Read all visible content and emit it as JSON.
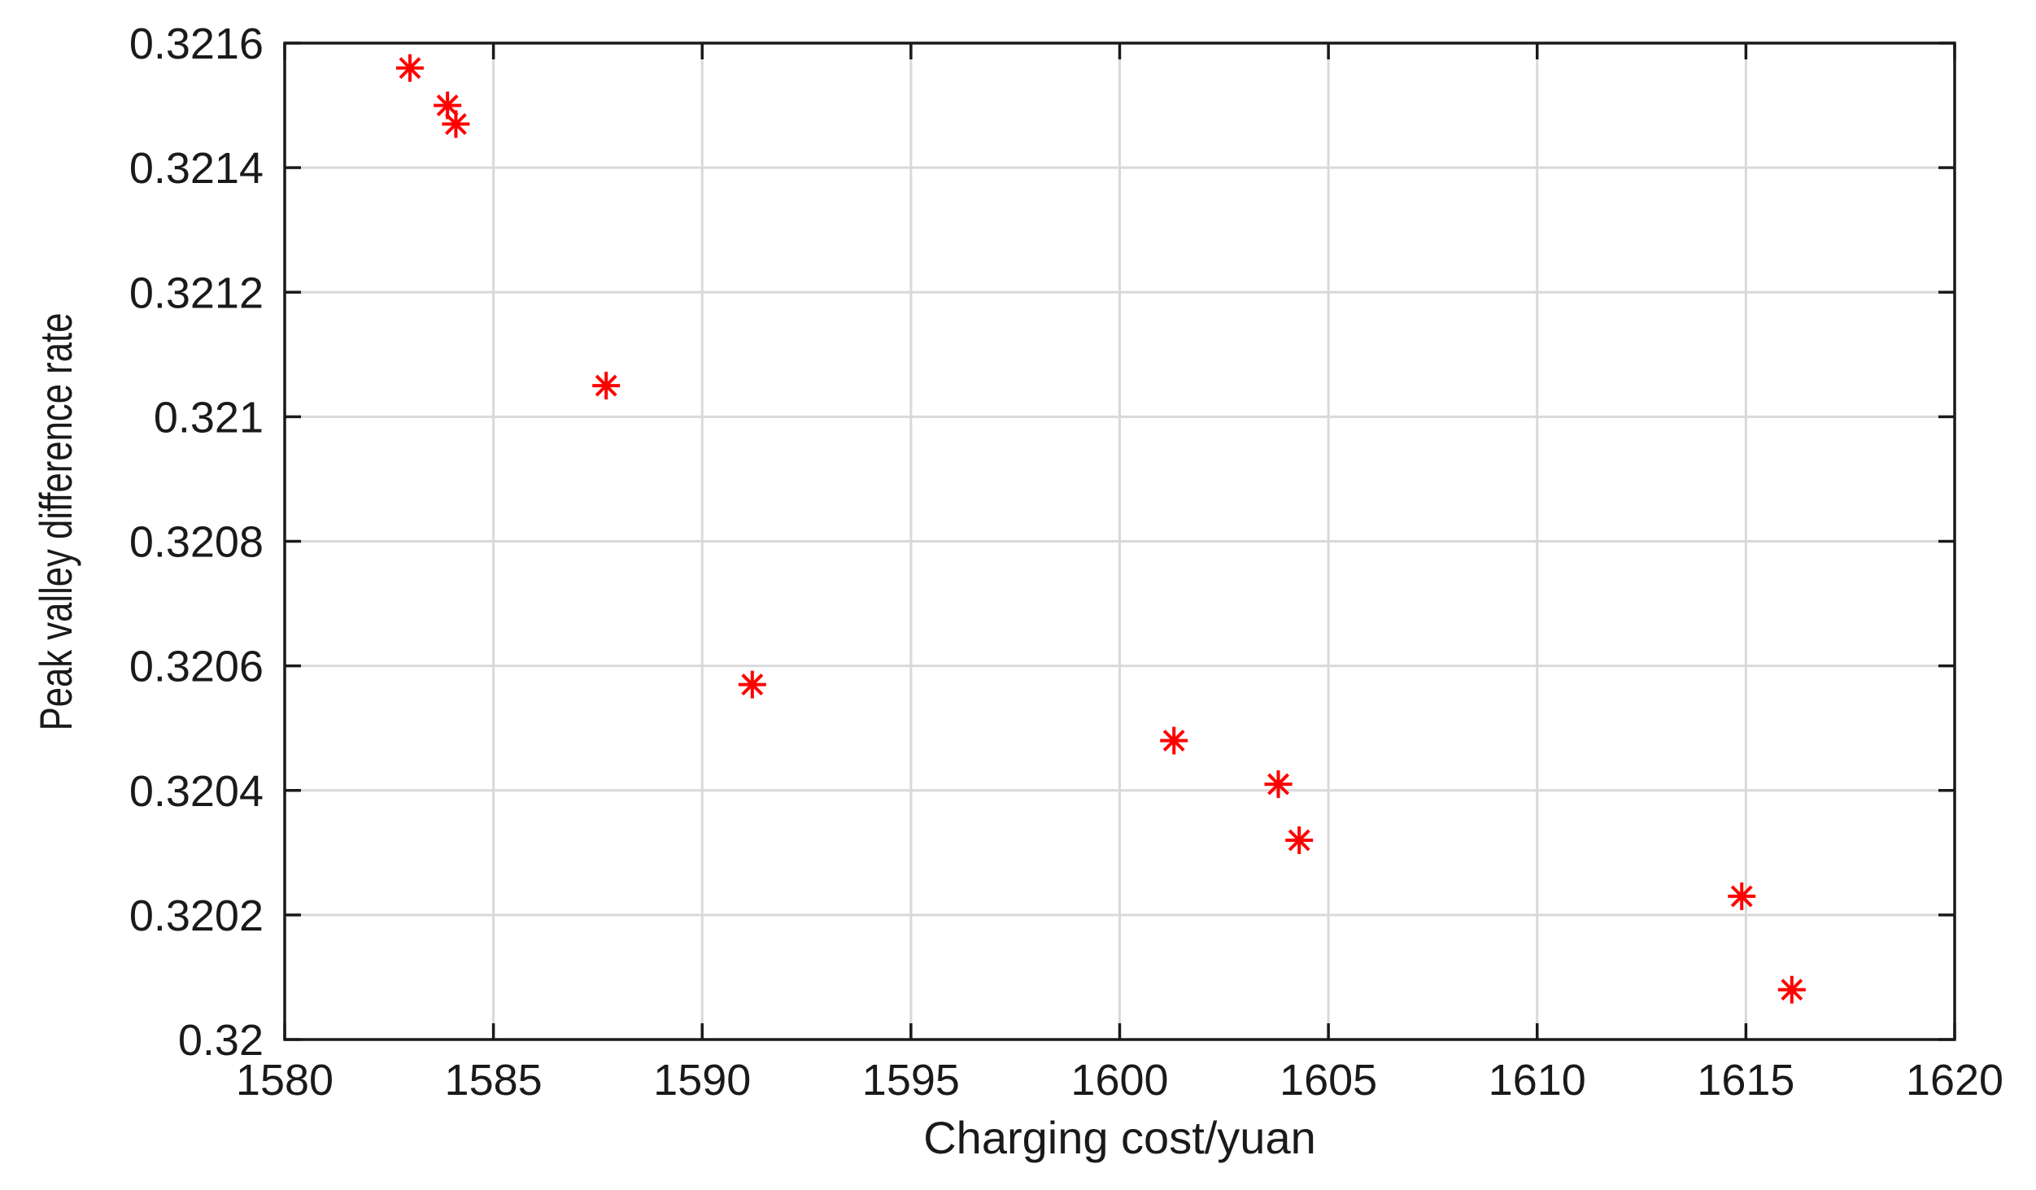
{
  "chart_data": {
    "type": "scatter",
    "title": "",
    "xlabel": "Charging cost/yuan",
    "ylabel": "Peak valley difference rate",
    "xlim": [
      1580,
      1620
    ],
    "ylim": [
      0.32,
      0.3216
    ],
    "x_ticks": [
      1580,
      1585,
      1590,
      1595,
      1600,
      1605,
      1610,
      1615,
      1620
    ],
    "x_tick_labels": [
      "1580",
      "1585",
      "1590",
      "1595",
      "1600",
      "1605",
      "1610",
      "1615",
      "1620"
    ],
    "y_ticks": [
      0.32,
      0.3202,
      0.3204,
      0.3206,
      0.3208,
      0.321,
      0.3212,
      0.3214,
      0.3216
    ],
    "y_tick_labels": [
      "0.32",
      "0.3202",
      "0.3204",
      "0.3206",
      "0.3208",
      "0.321",
      "0.3212",
      "0.3214",
      "0.3216"
    ],
    "grid": true,
    "marker": "asterisk",
    "marker_color": "#ff0000",
    "series": [
      {
        "x": [
          1583.0,
          1583.9,
          1584.1,
          1587.7,
          1591.2,
          1601.3,
          1603.8,
          1604.3,
          1614.9,
          1616.1
        ],
        "y": [
          0.32156,
          0.3215,
          0.32147,
          0.32105,
          0.32057,
          0.32048,
          0.32041,
          0.32032,
          0.32023,
          0.32008
        ]
      }
    ]
  }
}
